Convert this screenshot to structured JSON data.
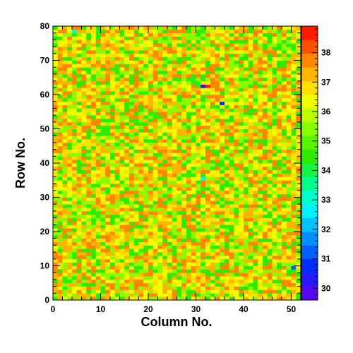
{
  "chart_data": {
    "type": "heatmap",
    "title": "",
    "xlabel": "Column No.",
    "ylabel": "Row No.",
    "xlim": [
      0,
      52
    ],
    "ylim": [
      0,
      80
    ],
    "x_ticks": [
      0,
      10,
      20,
      30,
      40,
      50
    ],
    "y_ticks": [
      0,
      10,
      20,
      30,
      40,
      50,
      60,
      70,
      80
    ],
    "z_range": [
      29.6,
      38.9
    ],
    "colorbar_ticks": [
      30,
      31,
      32,
      33,
      34,
      35,
      36,
      37,
      38
    ],
    "colorbar_levels": 20,
    "grid": false,
    "n_columns": 52,
    "n_rows": 80,
    "value_distribution": {
      "description_values": [
        34.6,
        35.4,
        36.2,
        36.7,
        37.3,
        37.9
      ],
      "typical_min": 34.2,
      "typical_max": 38.4
    },
    "outlier_cells": [
      {
        "column": 31,
        "row": 62,
        "value": 30.4
      },
      {
        "column": 32,
        "row": 62,
        "value": 38.6
      },
      {
        "column": 35,
        "row": 57,
        "value": 30.9
      },
      {
        "column": 31,
        "row": 35,
        "value": 32.6
      },
      {
        "column": 50,
        "row": 9,
        "value": 31.2
      },
      {
        "column": 4,
        "row": 78,
        "value": 33.1
      }
    ]
  }
}
